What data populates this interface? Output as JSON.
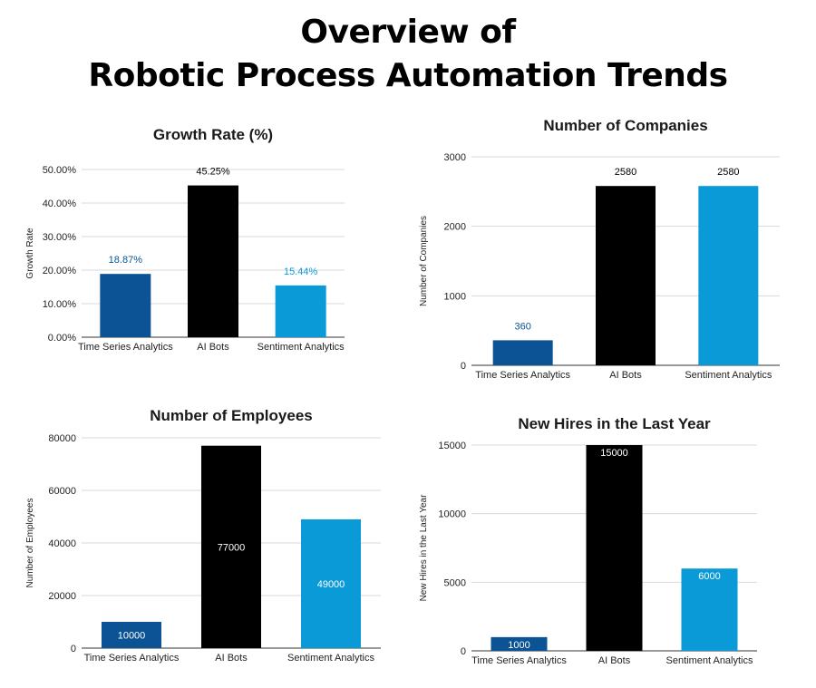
{
  "page": {
    "title_line1": "Overview of",
    "title_line2": "Robotic Process Automation Trends"
  },
  "colors": {
    "dark_blue": "#0b5394",
    "black": "#000000",
    "light_blue": "#0a9ad8"
  },
  "chart_data": [
    {
      "type": "bar",
      "title": "Growth Rate (%)",
      "xlabel": "",
      "ylabel": "Growth Rate",
      "categories": [
        "Time Series Analytics",
        "AI Bots",
        "Sentiment Analytics"
      ],
      "values": [
        18.87,
        45.25,
        15.44
      ],
      "value_labels": [
        "18.87%",
        "45.25%",
        "15.44%"
      ],
      "label_position": "above",
      "label_colors": [
        "#0b5394",
        "#000000",
        "#0a9ad8"
      ],
      "bar_colors": [
        "#0b5394",
        "#000000",
        "#0a9ad8"
      ],
      "ylim": [
        0,
        50
      ],
      "yticks": [
        0,
        10,
        20,
        30,
        40,
        50
      ],
      "ytick_labels": [
        "0.00%",
        "10.00%",
        "20.00%",
        "30.00%",
        "40.00%",
        "50.00%"
      ],
      "grid": true
    },
    {
      "type": "bar",
      "title": "Number of Companies",
      "xlabel": "",
      "ylabel": "Number of Companies",
      "categories": [
        "Time Series Analytics",
        "AI Bots",
        "Sentiment Analytics"
      ],
      "values": [
        360,
        2580,
        2580
      ],
      "value_labels": [
        "360",
        "2580",
        "2580"
      ],
      "label_position": "above",
      "label_colors": [
        "#0b5394",
        "#000000",
        "#000000"
      ],
      "bar_colors": [
        "#0b5394",
        "#000000",
        "#0a9ad8"
      ],
      "ylim": [
        0,
        3000
      ],
      "yticks": [
        0,
        1000,
        2000,
        3000
      ],
      "ytick_labels": [
        "0",
        "1000",
        "2000",
        "3000"
      ],
      "grid": true
    },
    {
      "type": "bar",
      "title": "Number of Employees",
      "xlabel": "",
      "ylabel": "Number of Employees",
      "categories": [
        "Time Series Analytics",
        "AI Bots",
        "Sentiment Analytics"
      ],
      "values": [
        10000,
        77000,
        49000
      ],
      "value_labels": [
        "10000",
        "77000",
        "49000"
      ],
      "label_position": "center",
      "label_colors": [
        "#ffffff",
        "#ffffff",
        "#ffffff"
      ],
      "bar_colors": [
        "#0b5394",
        "#000000",
        "#0a9ad8"
      ],
      "ylim": [
        0,
        80000
      ],
      "yticks": [
        0,
        20000,
        40000,
        60000,
        80000
      ],
      "ytick_labels": [
        "0",
        "20000",
        "40000",
        "60000",
        "80000"
      ],
      "grid": true
    },
    {
      "type": "bar",
      "title": "New Hires in the Last Year",
      "xlabel": "",
      "ylabel": "New Hires in the Last Year",
      "categories": [
        "Time Series Analytics",
        "AI Bots",
        "Sentiment Analytics"
      ],
      "values": [
        1000,
        15000,
        6000
      ],
      "value_labels": [
        "1000",
        "15000",
        "6000"
      ],
      "label_position": "inside-top",
      "label_colors": [
        "#ffffff",
        "#ffffff",
        "#ffffff"
      ],
      "bar_colors": [
        "#0b5394",
        "#000000",
        "#0a9ad8"
      ],
      "ylim": [
        0,
        15000
      ],
      "yticks": [
        0,
        5000,
        10000,
        15000
      ],
      "ytick_labels": [
        "0",
        "5000",
        "10000",
        "15000"
      ],
      "grid": true
    }
  ]
}
